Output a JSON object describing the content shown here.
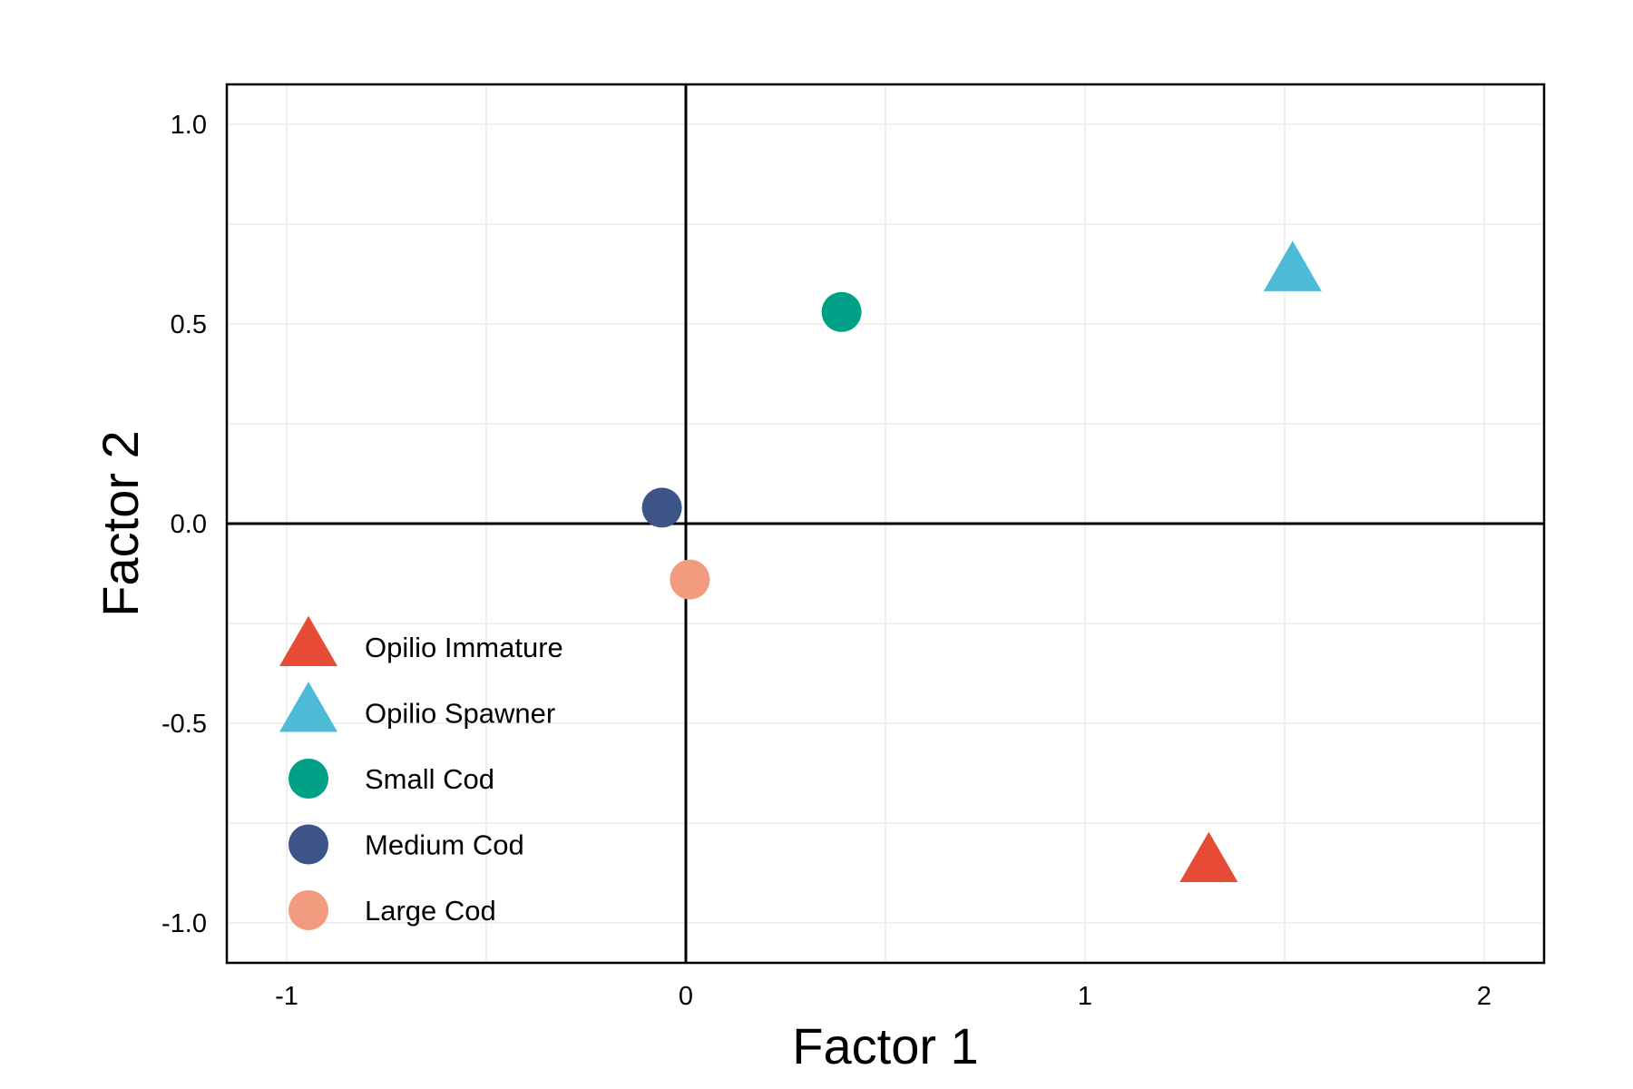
{
  "chart_data": {
    "type": "scatter",
    "title": "",
    "xlabel": "Factor 1",
    "ylabel": "Factor 2",
    "xlim": [
      -1.15,
      2.15
    ],
    "ylim": [
      -1.1,
      1.1
    ],
    "x_ticks": [
      -1,
      0,
      1,
      2
    ],
    "x_tick_labels": [
      "-1",
      "0",
      "1",
      "2"
    ],
    "y_ticks": [
      -1.0,
      -0.5,
      0.0,
      0.5,
      1.0
    ],
    "y_tick_labels": [
      "-1.0",
      "-0.5",
      "0.0",
      "0.5",
      "1.0"
    ],
    "grid": true,
    "reference_lines": {
      "x": 0,
      "y": 0
    },
    "legend_position": "bottom-left",
    "series": [
      {
        "name": "Opilio Immature",
        "shape": "triangle",
        "color": "#E64B35",
        "points": [
          {
            "x": 1.31,
            "y": -0.85
          }
        ]
      },
      {
        "name": "Opilio Spawner",
        "shape": "triangle",
        "color": "#4DBBD5",
        "points": [
          {
            "x": 1.52,
            "y": 0.63
          }
        ]
      },
      {
        "name": "Small Cod",
        "shape": "circle",
        "color": "#00A087",
        "points": [
          {
            "x": 0.39,
            "y": 0.53
          }
        ]
      },
      {
        "name": "Medium Cod",
        "shape": "circle",
        "color": "#3C5488",
        "points": [
          {
            "x": -0.06,
            "y": 0.04
          }
        ]
      },
      {
        "name": "Large Cod",
        "shape": "circle",
        "color": "#F39B7F",
        "points": [
          {
            "x": 0.01,
            "y": -0.14
          }
        ]
      }
    ]
  }
}
